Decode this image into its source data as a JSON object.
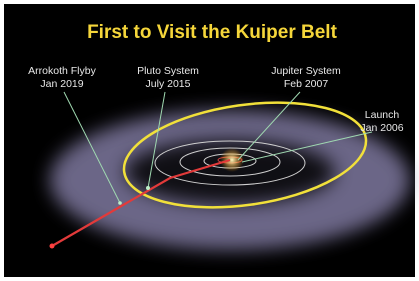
{
  "title": "First to Visit the Kuiper Belt",
  "labels": [
    {
      "name": "Arrokoth Flyby",
      "date": "Jan 2019"
    },
    {
      "name": "Pluto System",
      "date": "July 2015"
    },
    {
      "name": "Jupiter System",
      "date": "Feb 2007"
    },
    {
      "name": "Launch",
      "date": "Jan 2006"
    }
  ]
}
